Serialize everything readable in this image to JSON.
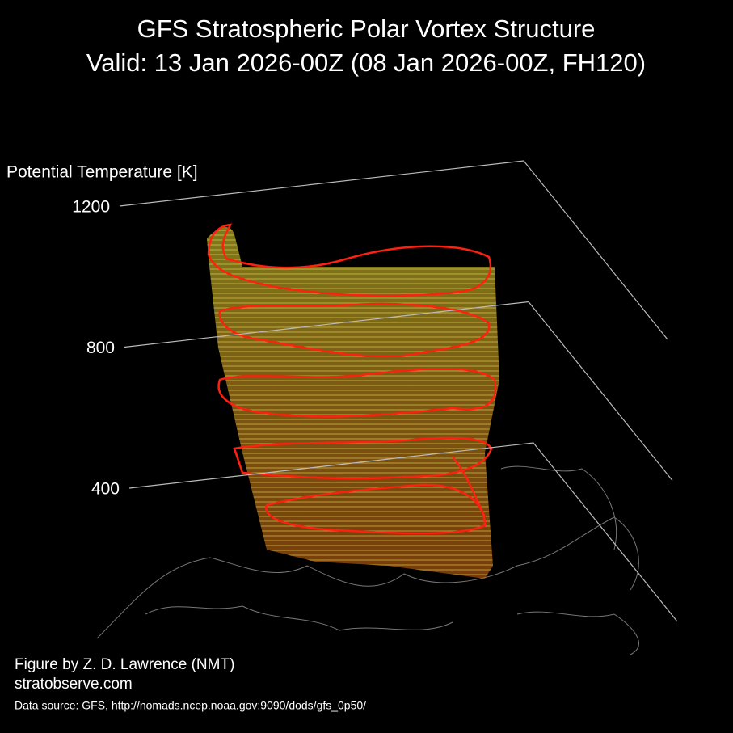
{
  "chart_data": {
    "type": "surface3d",
    "title": "GFS Stratospheric Polar Vortex Structure",
    "subtitle": "Valid: 13 Jan 2026-00Z  (08 Jan 2026-00Z, FH120)",
    "z_label": "Potential Temperature [K]",
    "zlim": [
      400,
      1200
    ],
    "zticks": [
      400,
      800,
      1200
    ],
    "credits": [
      "Figure by Z. D. Lawrence (NMT)",
      "stratobserve.com"
    ],
    "source": "Data source: GFS, http://nomads.ncep.noaa.gov:9090/dods/gfs_0p50/"
  }
}
